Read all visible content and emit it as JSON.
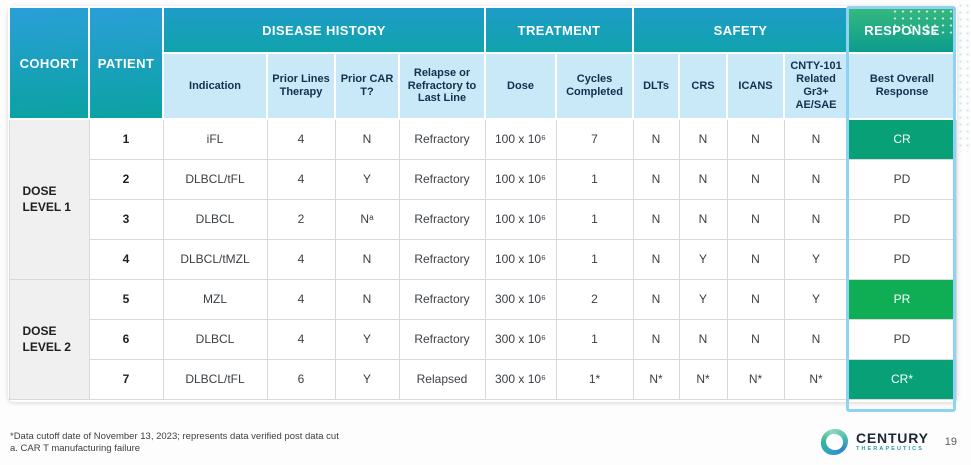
{
  "header": {
    "cohort": "COHORT",
    "patient": "PATIENT",
    "groups": {
      "disease_history": "DISEASE HISTORY",
      "treatment": "TREATMENT",
      "safety": "SAFETY",
      "response": "RESPONSE"
    },
    "columns": {
      "indication": "Indication",
      "prior_lines": "Prior Lines Therapy",
      "prior_cart": "Prior CAR T?",
      "relapse": "Relapse or Refractory to Last Line",
      "dose": "Dose",
      "cycles": "Cycles Completed",
      "dlts": "DLTs",
      "crs": "CRS",
      "icans": "ICANS",
      "cnty": "CNTY-101 Related Gr3+ AE/SAE",
      "best_overall": "Best Overall Response"
    }
  },
  "table": {
    "cohorts": [
      {
        "label": "DOSE\nLEVEL 1",
        "rows": [
          {
            "patient": "1",
            "indication": "iFL",
            "prior_lines": "4",
            "prior_cart": "N",
            "relapse": "Refractory",
            "dose": "100 x 10⁶",
            "cycles": "7",
            "dlts": "N",
            "crs": "N",
            "icans": "N",
            "cnty": "N",
            "response": "CR"
          },
          {
            "patient": "2",
            "indication": "DLBCL/tFL",
            "prior_lines": "4",
            "prior_cart": "Y",
            "relapse": "Refractory",
            "dose": "100 x 10⁶",
            "cycles": "1",
            "dlts": "N",
            "crs": "N",
            "icans": "N",
            "cnty": "N",
            "response": "PD"
          },
          {
            "patient": "3",
            "indication": "DLBCL",
            "prior_lines": "2",
            "prior_cart": "Nᵃ",
            "relapse": "Refractory",
            "dose": "100 x 10⁶",
            "cycles": "1",
            "dlts": "N",
            "crs": "N",
            "icans": "N",
            "cnty": "N",
            "response": "PD"
          },
          {
            "patient": "4",
            "indication": "DLBCL/tMZL",
            "prior_lines": "4",
            "prior_cart": "N",
            "relapse": "Refractory",
            "dose": "100 x 10⁶",
            "cycles": "1",
            "dlts": "N",
            "crs": "Y",
            "icans": "N",
            "cnty": "Y",
            "response": "PD"
          }
        ]
      },
      {
        "label": "DOSE\nLEVEL 2",
        "rows": [
          {
            "patient": "5",
            "indication": "MZL",
            "prior_lines": "4",
            "prior_cart": "N",
            "relapse": "Refractory",
            "dose": "300 x 10⁶",
            "cycles": "2",
            "dlts": "N",
            "crs": "Y",
            "icans": "N",
            "cnty": "Y",
            "response": "PR"
          },
          {
            "patient": "6",
            "indication": "DLBCL",
            "prior_lines": "4",
            "prior_cart": "Y",
            "relapse": "Refractory",
            "dose": "300 x 10⁶",
            "cycles": "1",
            "dlts": "N",
            "crs": "N",
            "icans": "N",
            "cnty": "N",
            "response": "PD"
          },
          {
            "patient": "7",
            "indication": "DLBCL/tFL",
            "prior_lines": "6",
            "prior_cart": "Y",
            "relapse": "Relapsed",
            "dose": "300 x 10⁶",
            "cycles": "1*",
            "dlts": "N*",
            "crs": "N*",
            "icans": "N*",
            "cnty": "N*",
            "response": "CR*"
          }
        ]
      }
    ]
  },
  "footnotes": [
    "*Data cutoff date of November 13, 2023; represents data verified post data cut",
    "a. CAR T manufacturing failure"
  ],
  "footer": {
    "logo_name": "CENTURY",
    "logo_sub": "THERAPEUTICS",
    "page_number": "19"
  },
  "colors": {
    "header_gradient_top": "#2a9fd8",
    "header_gradient_bottom": "#0aa2a2",
    "response_header_top": "#36b97d",
    "response_header_bottom": "#0c9c8e",
    "subheader_bg": "#c9e8f8",
    "subheader_text": "#14304e",
    "cr_cell_green": "#07a077",
    "pr_cell_green": "#0fae55",
    "response_outline": "#8fd2f2",
    "cohort_cell_bg": "#f0f0f0"
  }
}
